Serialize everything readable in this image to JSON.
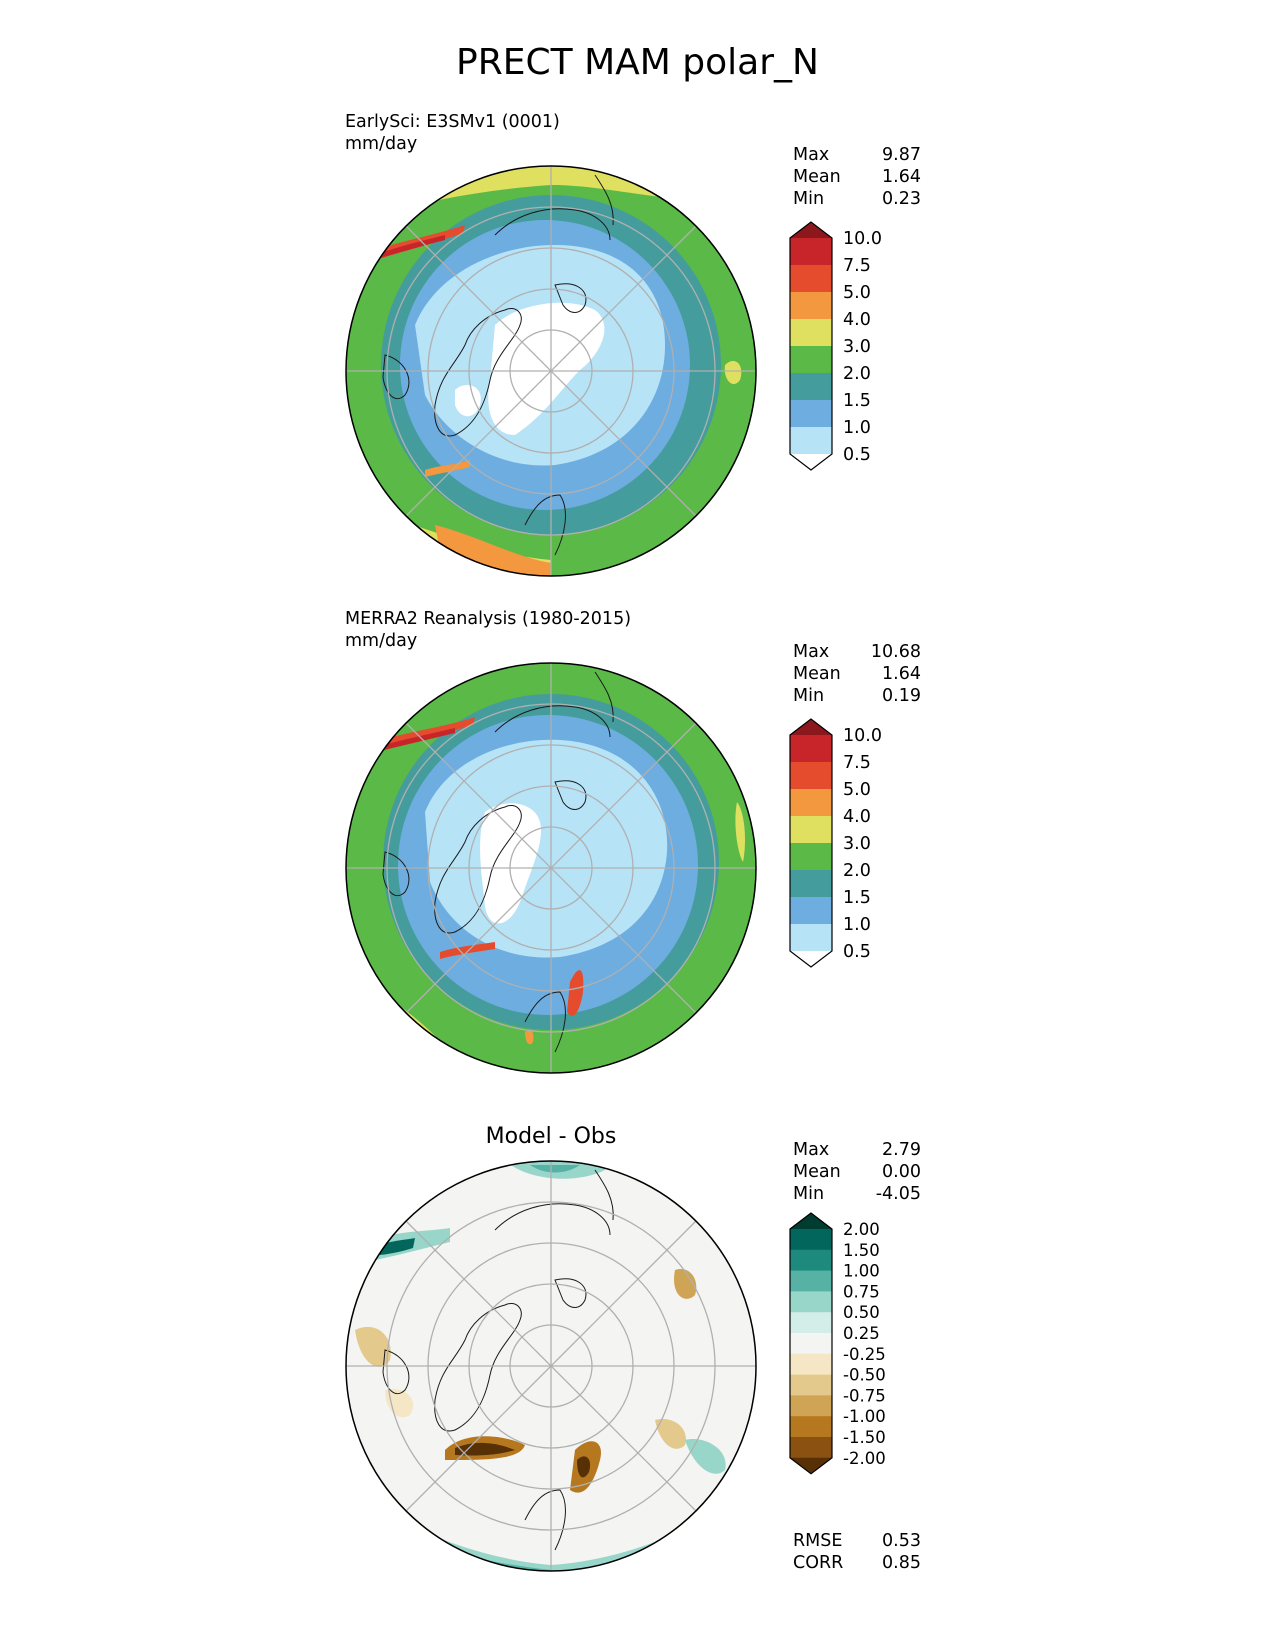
{
  "figure": {
    "title": "PRECT MAM polar_N"
  },
  "panels": [
    {
      "id": "test",
      "title_line1": "EarlySci: E3SMv1 (0001)",
      "title_line2": "mm/day",
      "stats": [
        {
          "label": "Max",
          "value": "9.87"
        },
        {
          "label": "Mean",
          "value": "1.64"
        },
        {
          "label": "Min",
          "value": "0.23"
        }
      ]
    },
    {
      "id": "ref",
      "title_line1": "MERRA2 Reanalysis (1980-2015)",
      "title_line2": "mm/day",
      "stats": [
        {
          "label": "Max",
          "value": "10.68"
        },
        {
          "label": "Mean",
          "value": "1.64"
        },
        {
          "label": "Min",
          "value": "0.19"
        }
      ]
    },
    {
      "id": "diff",
      "title": "Model - Obs",
      "stats": [
        {
          "label": "Max",
          "value": "2.79"
        },
        {
          "label": "Mean",
          "value": "0.00"
        },
        {
          "label": "Min",
          "value": "-4.05"
        }
      ],
      "metrics": [
        {
          "label": "RMSE",
          "value": "0.53"
        },
        {
          "label": "CORR",
          "value": "0.85"
        }
      ]
    }
  ],
  "chart_data": [
    {
      "type": "heatmap",
      "projection": "north-polar-stereographic",
      "title": "EarlySci: E3SMv1 (0001)",
      "units": "mm/day",
      "max": 9.87,
      "mean": 1.64,
      "min": 0.23,
      "colorbar": {
        "levels": [
          "0.5",
          "1.0",
          "1.5",
          "2.0",
          "3.0",
          "4.0",
          "5.0",
          "7.5",
          "10.0"
        ],
        "colors": [
          "#ffffff",
          "#b7e3f7",
          "#6dade0",
          "#449d9c",
          "#5bb947",
          "#dfe060",
          "#f3983e",
          "#e54c2e",
          "#c8252b",
          "#8c171c"
        ],
        "extend": "both"
      }
    },
    {
      "type": "heatmap",
      "projection": "north-polar-stereographic",
      "title": "MERRA2 Reanalysis (1980-2015)",
      "units": "mm/day",
      "max": 10.68,
      "mean": 1.64,
      "min": 0.19,
      "colorbar": {
        "levels": [
          "0.5",
          "1.0",
          "1.5",
          "2.0",
          "3.0",
          "4.0",
          "5.0",
          "7.5",
          "10.0"
        ],
        "colors": [
          "#ffffff",
          "#b7e3f7",
          "#6dade0",
          "#449d9c",
          "#5bb947",
          "#dfe060",
          "#f3983e",
          "#e54c2e",
          "#c8252b",
          "#8c171c"
        ],
        "extend": "both"
      }
    },
    {
      "type": "heatmap",
      "projection": "north-polar-stereographic",
      "title": "Model - Obs",
      "max": 2.79,
      "mean": 0.0,
      "min": -4.05,
      "rmse": 0.53,
      "corr": 0.85,
      "colorbar": {
        "levels": [
          "-2.00",
          "-1.50",
          "-1.00",
          "-0.75",
          "-0.50",
          "-0.25",
          "0.25",
          "0.50",
          "0.75",
          "1.00",
          "1.50",
          "2.00"
        ],
        "colors": [
          "#573006",
          "#8a5111",
          "#b6781f",
          "#cfa455",
          "#e4c98c",
          "#f5e7c5",
          "#f4f4f2",
          "#d3ede8",
          "#98d6ca",
          "#55b2a5",
          "#1e8a7d",
          "#02665c",
          "#003c30"
        ],
        "extend": "both"
      }
    }
  ]
}
